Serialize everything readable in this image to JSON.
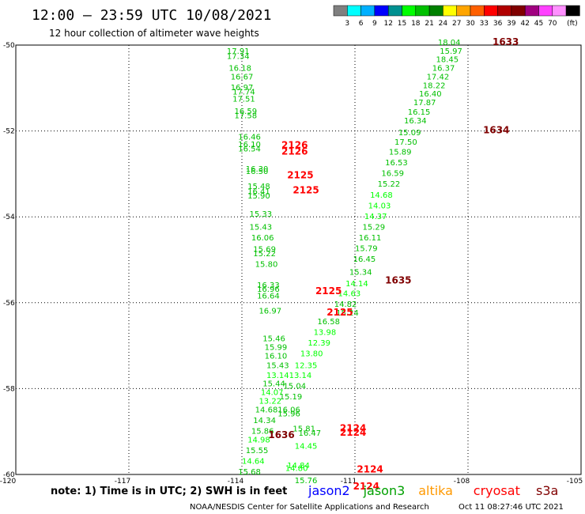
{
  "header": {
    "title": "12:00 – 23:59 UTC 10/08/2021",
    "subtitle": "12 hour collection of altimeter wave heights"
  },
  "colorbar": {
    "unit": "(ft)",
    "ticks": [
      "3",
      "6",
      "9",
      "12",
      "15",
      "18",
      "21",
      "24",
      "27",
      "30",
      "33",
      "36",
      "39",
      "42",
      "45",
      "70"
    ],
    "colors": [
      "#808080",
      "#00ffff",
      "#00b0ff",
      "#0000ff",
      "#009090",
      "#00ff00",
      "#00c000",
      "#008000",
      "#ffff00",
      "#ffa500",
      "#ff6000",
      "#ff0000",
      "#b00000",
      "#800000",
      "#a00080",
      "#ff40ff",
      "#ff90ff",
      "#000000"
    ]
  },
  "chart_data": {
    "type": "scatter",
    "xlim": [
      -120,
      -105
    ],
    "ylim": [
      -60,
      -50
    ],
    "x_ticks": [
      "-117",
      "-114",
      "-111",
      "-108",
      "-105"
    ],
    "x_edge_left": "-120",
    "y_ticks": [
      "-50",
      "-52",
      "-54",
      "-56",
      "-58",
      "-60"
    ],
    "values": [
      {
        "x": -114.4,
        "y": -50.2,
        "v": "17.91",
        "c": "#00c000"
      },
      {
        "x": -114.4,
        "y": -50.32,
        "v": "17.34",
        "c": "#00c000"
      },
      {
        "x": -114.35,
        "y": -50.6,
        "v": "16.18",
        "c": "#00c000"
      },
      {
        "x": -114.3,
        "y": -50.8,
        "v": "16.67",
        "c": "#00c000"
      },
      {
        "x": -114.3,
        "y": -51.05,
        "v": "16.97",
        "c": "#00c000"
      },
      {
        "x": -114.25,
        "y": -51.15,
        "v": "17.74",
        "c": "#00c000"
      },
      {
        "x": -114.25,
        "y": -51.32,
        "v": "17.51",
        "c": "#00c000"
      },
      {
        "x": -114.2,
        "y": -51.6,
        "v": "16.59",
        "c": "#00c000"
      },
      {
        "x": -114.2,
        "y": -51.7,
        "v": "17.58",
        "c": "#00c000"
      },
      {
        "x": -114.1,
        "y": -52.2,
        "v": "16.46",
        "c": "#00c000"
      },
      {
        "x": -114.1,
        "y": -52.38,
        "v": "16.10",
        "c": "#00c000"
      },
      {
        "x": -114.1,
        "y": -52.48,
        "v": "16.54",
        "c": "#00c000"
      },
      {
        "x": -113.9,
        "y": -52.95,
        "v": "16.30",
        "c": "#00c000"
      },
      {
        "x": -113.9,
        "y": -53.0,
        "v": "16.50",
        "c": "#00c000"
      },
      {
        "x": -113.85,
        "y": -53.35,
        "v": "15.48",
        "c": "#00c000"
      },
      {
        "x": -113.85,
        "y": -53.47,
        "v": "16.41",
        "c": "#00c000"
      },
      {
        "x": -113.85,
        "y": -53.57,
        "v": "15.90",
        "c": "#00c000"
      },
      {
        "x": -113.8,
        "y": -54.0,
        "v": "15.33",
        "c": "#00c000"
      },
      {
        "x": -113.8,
        "y": -54.3,
        "v": "15.43",
        "c": "#00c000"
      },
      {
        "x": -113.75,
        "y": -54.55,
        "v": "16.06",
        "c": "#00c000"
      },
      {
        "x": -113.7,
        "y": -54.82,
        "v": "15.69",
        "c": "#00c000"
      },
      {
        "x": -113.7,
        "y": -54.92,
        "v": "15.22",
        "c": "#00c000"
      },
      {
        "x": -113.65,
        "y": -55.17,
        "v": "15.80",
        "c": "#00c000"
      },
      {
        "x": -113.6,
        "y": -55.65,
        "v": "16.33",
        "c": "#00c000"
      },
      {
        "x": -113.6,
        "y": -55.75,
        "v": "16.96",
        "c": "#00c000"
      },
      {
        "x": -113.6,
        "y": -55.9,
        "v": "16.64",
        "c": "#00c000"
      },
      {
        "x": -113.55,
        "y": -56.25,
        "v": "16.97",
        "c": "#00c000"
      },
      {
        "x": -113.45,
        "y": -56.9,
        "v": "15.46",
        "c": "#00c000"
      },
      {
        "x": -113.4,
        "y": -57.1,
        "v": "15.99",
        "c": "#00c000"
      },
      {
        "x": -113.4,
        "y": -57.3,
        "v": "16.10",
        "c": "#00c000"
      },
      {
        "x": -113.35,
        "y": -57.52,
        "v": "15.43",
        "c": "#00c000"
      },
      {
        "x": -113.35,
        "y": -57.75,
        "v": "13.14",
        "c": "#00ff00"
      },
      {
        "x": -113.45,
        "y": -57.95,
        "v": "15.44",
        "c": "#00c000"
      },
      {
        "x": -113.5,
        "y": -58.15,
        "v": "14.07",
        "c": "#00ff00"
      },
      {
        "x": -113.55,
        "y": -58.35,
        "v": "13.22",
        "c": "#00ff00"
      },
      {
        "x": -113.65,
        "y": -58.55,
        "v": "14.68",
        "c": "#00c000"
      },
      {
        "x": -113.7,
        "y": -58.8,
        "v": "14.34",
        "c": "#00c000"
      },
      {
        "x": -113.75,
        "y": -59.05,
        "v": "15.86",
        "c": "#00c000"
      },
      {
        "x": -113.85,
        "y": -59.25,
        "v": "14.98",
        "c": "#00ff00"
      },
      {
        "x": -113.9,
        "y": -59.5,
        "v": "15.55",
        "c": "#00c000"
      },
      {
        "x": -114.0,
        "y": -59.75,
        "v": "14.64",
        "c": "#00ff00"
      },
      {
        "x": -114.1,
        "y": -60.0,
        "v": "15.68",
        "c": "#00c000"
      },
      {
        "x": -108.8,
        "y": -50.0,
        "v": "18.04",
        "c": "#00c000"
      },
      {
        "x": -108.75,
        "y": -50.2,
        "v": "15.97",
        "c": "#00c000"
      },
      {
        "x": -108.85,
        "y": -50.4,
        "v": "18.45",
        "c": "#00c000"
      },
      {
        "x": -108.95,
        "y": -50.6,
        "v": "16.37",
        "c": "#00c000"
      },
      {
        "x": -109.1,
        "y": -50.8,
        "v": "17.42",
        "c": "#00c000"
      },
      {
        "x": -109.2,
        "y": -51.0,
        "v": "18.22",
        "c": "#00c000"
      },
      {
        "x": -109.3,
        "y": -51.2,
        "v": "16.40",
        "c": "#00c000"
      },
      {
        "x": -109.45,
        "y": -51.4,
        "v": "17.87",
        "c": "#00c000"
      },
      {
        "x": -109.6,
        "y": -51.62,
        "v": "16.15",
        "c": "#00c000"
      },
      {
        "x": -109.7,
        "y": -51.82,
        "v": "16.34",
        "c": "#00c000"
      },
      {
        "x": -109.85,
        "y": -52.1,
        "v": "15.09",
        "c": "#00c000"
      },
      {
        "x": -109.95,
        "y": -52.32,
        "v": "17.50",
        "c": "#00c000"
      },
      {
        "x": -110.1,
        "y": -52.55,
        "v": "15.89",
        "c": "#00c000"
      },
      {
        "x": -110.2,
        "y": -52.8,
        "v": "16.53",
        "c": "#00c000"
      },
      {
        "x": -110.3,
        "y": -53.05,
        "v": "16.59",
        "c": "#00c000"
      },
      {
        "x": -110.4,
        "y": -53.3,
        "v": "15.22",
        "c": "#00c000"
      },
      {
        "x": -110.6,
        "y": -53.55,
        "v": "14.68",
        "c": "#00ff00"
      },
      {
        "x": -110.65,
        "y": -53.8,
        "v": "14.03",
        "c": "#00ff00"
      },
      {
        "x": -110.75,
        "y": -54.05,
        "v": "14.37",
        "c": "#00ff00"
      },
      {
        "x": -110.8,
        "y": -54.3,
        "v": "15.29",
        "c": "#00c000"
      },
      {
        "x": -110.9,
        "y": -54.55,
        "v": "16.11",
        "c": "#00c000"
      },
      {
        "x": -111.0,
        "y": -54.8,
        "v": "15.79",
        "c": "#00c000"
      },
      {
        "x": -111.05,
        "y": -55.05,
        "v": "16.45",
        "c": "#00c000"
      },
      {
        "x": -111.15,
        "y": -55.35,
        "v": "15.34",
        "c": "#00c000"
      },
      {
        "x": -111.25,
        "y": -55.62,
        "v": "14.14",
        "c": "#00ff00"
      },
      {
        "x": -111.45,
        "y": -55.85,
        "v": "14.63",
        "c": "#00ff00"
      },
      {
        "x": -111.55,
        "y": -56.1,
        "v": "14.82",
        "c": "#00c000"
      },
      {
        "x": -111.5,
        "y": -56.3,
        "v": "15.24",
        "c": "#00c000"
      },
      {
        "x": -112.0,
        "y": -56.5,
        "v": "16.58",
        "c": "#00c000"
      },
      {
        "x": -112.1,
        "y": -56.75,
        "v": "13.98",
        "c": "#00ff00"
      },
      {
        "x": -112.25,
        "y": -57.0,
        "v": "12.39",
        "c": "#00ff00"
      },
      {
        "x": -112.45,
        "y": -57.25,
        "v": "13.80",
        "c": "#00ff00"
      },
      {
        "x": -112.6,
        "y": -57.52,
        "v": "12.35",
        "c": "#00ff00"
      },
      {
        "x": -112.75,
        "y": -57.75,
        "v": "13.14",
        "c": "#00ff00"
      },
      {
        "x": -112.9,
        "y": -58.0,
        "v": "15.04",
        "c": "#00c000"
      },
      {
        "x": -113.0,
        "y": -58.25,
        "v": "15.19",
        "c": "#00c000"
      },
      {
        "x": -113.05,
        "y": -58.55,
        "v": "16.06",
        "c": "#00c000"
      },
      {
        "x": -113.05,
        "y": -58.65,
        "v": "15.96",
        "c": "#00c000"
      },
      {
        "x": -112.65,
        "y": -59.0,
        "v": "15.81",
        "c": "#00c000"
      },
      {
        "x": -112.5,
        "y": -59.1,
        "v": "16.47",
        "c": "#00c000"
      },
      {
        "x": -112.6,
        "y": -59.4,
        "v": "14.45",
        "c": "#00ff00"
      },
      {
        "x": -112.8,
        "y": -59.85,
        "v": "14.84",
        "c": "#00ff00"
      },
      {
        "x": -112.85,
        "y": -59.92,
        "v": "14.80",
        "c": "#00ff00"
      },
      {
        "x": -112.6,
        "y": -60.2,
        "v": "15.76",
        "c": "#00c000"
      }
    ],
    "time_labels": [
      {
        "x": -107.35,
        "y": -50.0,
        "v": "1633",
        "c": "#800000"
      },
      {
        "x": -107.6,
        "y": -52.05,
        "v": "1634",
        "c": "#800000"
      },
      {
        "x": -110.2,
        "y": -55.55,
        "v": "1635",
        "c": "#800000"
      },
      {
        "x": -113.3,
        "y": -59.15,
        "v": "1636",
        "c": "#800000"
      },
      {
        "x": -112.95,
        "y": -52.4,
        "v": "2126",
        "c": "#ff0000"
      },
      {
        "x": -112.95,
        "y": -52.55,
        "v": "2126",
        "c": "#ff0000"
      },
      {
        "x": -112.8,
        "y": -53.1,
        "v": "2125",
        "c": "#ff0000"
      },
      {
        "x": -112.65,
        "y": -53.45,
        "v": "2125",
        "c": "#ff0000"
      },
      {
        "x": -112.05,
        "y": -55.8,
        "v": "2125",
        "c": "#ff0000"
      },
      {
        "x": -111.75,
        "y": -56.3,
        "v": "2125",
        "c": "#ff0000"
      },
      {
        "x": -111.4,
        "y": -59.0,
        "v": "2124",
        "c": "#ff0000"
      },
      {
        "x": -111.4,
        "y": -59.1,
        "v": "2124",
        "c": "#ff0000"
      },
      {
        "x": -110.95,
        "y": -59.95,
        "v": "2124",
        "c": "#ff0000"
      },
      {
        "x": -111.05,
        "y": -60.35,
        "v": "2124",
        "c": "#ff0000"
      }
    ]
  },
  "footer": {
    "note": "note:  1) Time is in UTC;  2) SWH is in feet",
    "satellites": [
      {
        "name": "jason2",
        "color": "#0000ff"
      },
      {
        "name": "jason3",
        "color": "#00a000"
      },
      {
        "name": "altika",
        "color": "#ff9900"
      },
      {
        "name": "cryosat",
        "color": "#ff0000"
      },
      {
        "name": "s3a",
        "color": "#800000"
      }
    ],
    "credit": "NOAA/NESDIS Center for Satellite Applications and Research",
    "timestamp": "Oct 11 08:27:46 UTC 2021"
  }
}
